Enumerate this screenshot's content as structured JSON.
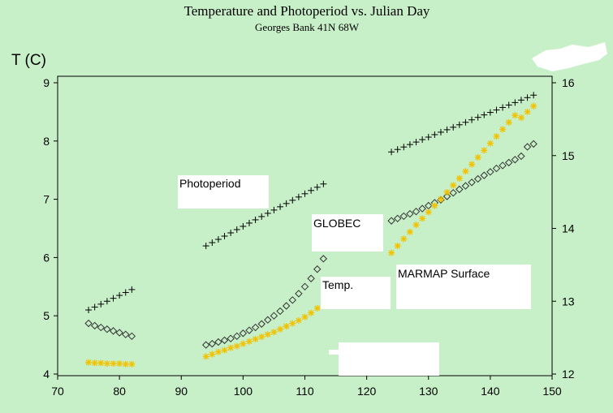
{
  "colors": {
    "background": "#c8f0c8",
    "annotation_box": "#ffffff",
    "photoperiod": "#000000",
    "globec": "#333333",
    "marmap": "#f2c200"
  },
  "chart_data": {
    "type": "scatter",
    "title": "Temperature and Photoperiod  vs. Julian Day",
    "subtitle": "Georges Bank 41N 68W",
    "ylabel": "T  (C)",
    "xlim": [
      70,
      150
    ],
    "ylim": [
      4,
      9
    ],
    "y2lim": [
      12,
      16
    ],
    "x_ticks": [
      "70",
      "80",
      "90",
      "100",
      "110",
      "120",
      "130",
      "140",
      "150"
    ],
    "y_ticks": [
      "4",
      "5",
      "6",
      "7",
      "8",
      "9"
    ],
    "y2_ticks": [
      "12",
      "13",
      "14",
      "15",
      "16"
    ],
    "annotations": [
      "Photoperiod",
      "GLOBEC",
      "Temp.",
      "MARMAP Surface"
    ],
    "series": [
      {
        "axis": "right",
        "marker": "plus",
        "color": "#000000",
        "segments": [
          {
            "x_start": 75,
            "x_end": 82,
            "y_start": 12.88,
            "y_end": 13.16
          },
          {
            "x_start": 94,
            "x_end": 113,
            "y_start": 13.76,
            "y_end": 14.61
          },
          {
            "x_start": 124,
            "x_end": 147,
            "y_start": 15.05,
            "y_end": 15.83
          }
        ]
      },
      {
        "axis": "left",
        "marker": "diamond",
        "color": "#333333",
        "segments": [
          {
            "x_start": 75,
            "x_end": 82,
            "y": [
              4.87,
              4.83,
              4.8,
              4.77,
              4.74,
              4.71,
              4.68,
              4.65
            ]
          },
          {
            "x_start": 94,
            "x_end": 113,
            "y": [
              4.5,
              4.52,
              4.55,
              4.58,
              4.61,
              4.65,
              4.7,
              4.75,
              4.8,
              4.86,
              4.93,
              5.0,
              5.08,
              5.17,
              5.27,
              5.38,
              5.5,
              5.64,
              5.8,
              5.98
            ]
          },
          {
            "x_start": 124,
            "x_end": 147,
            "y": [
              6.63,
              6.67,
              6.71,
              6.75,
              6.79,
              6.84,
              6.89,
              6.94,
              6.99,
              7.05,
              7.11,
              7.17,
              7.23,
              7.29,
              7.35,
              7.41,
              7.47,
              7.53,
              7.58,
              7.63,
              7.68,
              7.74,
              7.9,
              7.95
            ]
          }
        ]
      },
      {
        "axis": "left",
        "marker": "star",
        "color": "#f2c200",
        "segments": [
          {
            "x_start": 75,
            "x_end": 82,
            "y": [
              4.2,
              4.19,
              4.19,
              4.18,
              4.18,
              4.18,
              4.17,
              4.17
            ]
          },
          {
            "x_start": 94,
            "x_end": 112,
            "y": [
              4.3,
              4.34,
              4.38,
              4.41,
              4.45,
              4.48,
              4.52,
              4.56,
              4.6,
              4.64,
              4.68,
              4.72,
              4.77,
              4.82,
              4.87,
              4.92,
              4.98,
              5.05,
              5.13
            ]
          },
          {
            "x_start": 124,
            "x_end": 147,
            "y": [
              6.08,
              6.2,
              6.32,
              6.44,
              6.56,
              6.67,
              6.78,
              6.89,
              7.0,
              7.12,
              7.24,
              7.36,
              7.48,
              7.6,
              7.72,
              7.84,
              7.96,
              8.08,
              8.2,
              8.32,
              8.44,
              8.4,
              8.5,
              8.6
            ]
          }
        ]
      }
    ]
  }
}
